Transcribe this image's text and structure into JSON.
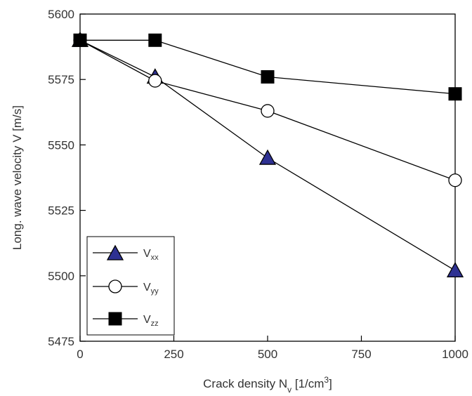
{
  "chart_data": {
    "type": "line",
    "xlabel": {
      "main": "Crack density N",
      "sub": "v",
      "mid": " [1/cm",
      "sup": "3",
      "end": "]"
    },
    "ylabel": "Long. wave velocity V [m/s]",
    "xlim": [
      0,
      1000
    ],
    "ylim": [
      5475,
      5600
    ],
    "xticks": [
      0,
      250,
      500,
      750,
      1000
    ],
    "yticks": [
      5475,
      5500,
      5525,
      5550,
      5575,
      5600
    ],
    "xtick_labels": [
      "0",
      "250",
      "500",
      "750",
      "1000"
    ],
    "ytick_labels": [
      "5475",
      "5500",
      "5525",
      "5550",
      "5575",
      "5600"
    ],
    "grid": false,
    "legend_position": "bottom-left",
    "series": [
      {
        "name": "V",
        "sub": "xx",
        "marker": "triangle",
        "color": "#2E3192",
        "x": [
          0,
          200,
          500,
          1000
        ],
        "y": [
          5590,
          5576,
          5545,
          5502
        ]
      },
      {
        "name": "V",
        "sub": "yy",
        "marker": "circle",
        "color": "#ffffff",
        "x": [
          0,
          200,
          500,
          1000
        ],
        "y": [
          5590,
          5574.5,
          5563,
          5536.5
        ]
      },
      {
        "name": "V",
        "sub": "zz",
        "marker": "square",
        "color": "#000000",
        "x": [
          0,
          200,
          500,
          1000
        ],
        "y": [
          5590,
          5590,
          5576,
          5569.5
        ]
      }
    ]
  }
}
